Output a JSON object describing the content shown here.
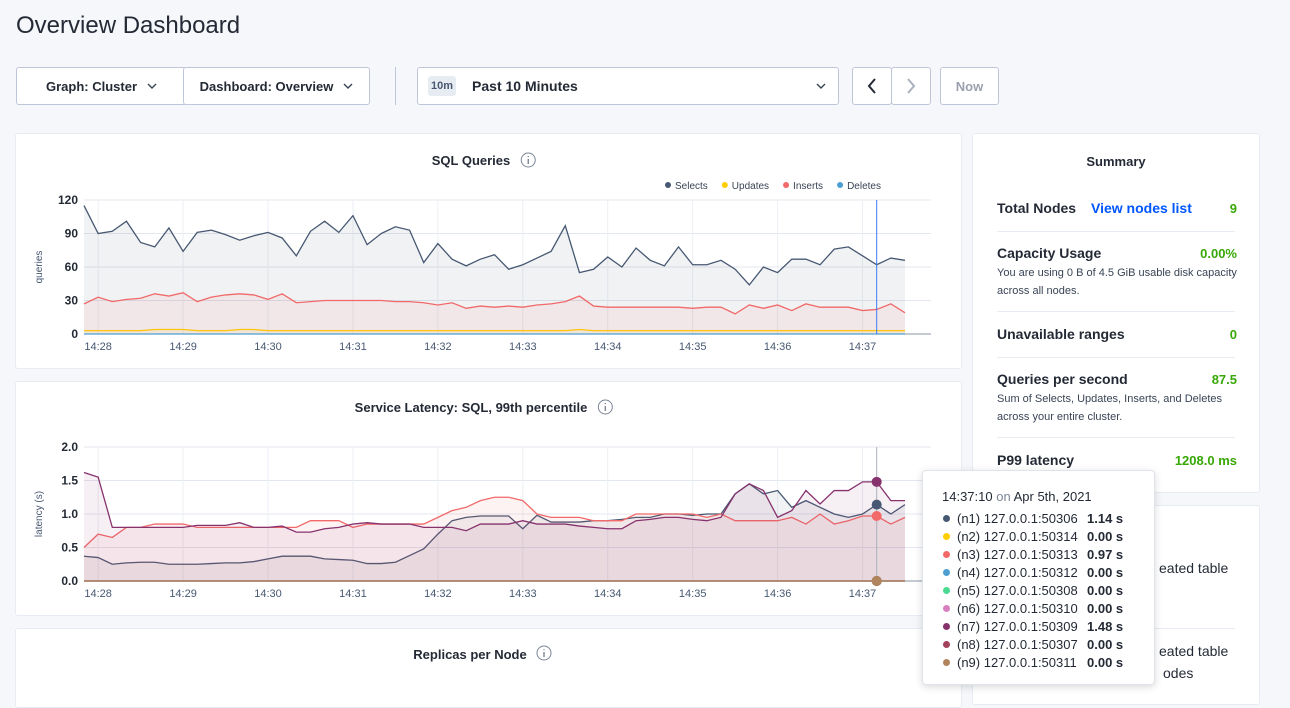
{
  "header": {
    "title": "Overview Dashboard"
  },
  "controls": {
    "graph": "Graph: Cluster",
    "dashboard": "Dashboard: Overview",
    "time_badge": "10m",
    "time_range": "Past 10 Minutes",
    "now": "Now"
  },
  "chart_data": [
    {
      "type": "area",
      "title": "SQL Queries",
      "y_label": "queries",
      "legend": "top-right",
      "grid": true,
      "ylim": [
        0,
        120
      ],
      "yticks": [
        0,
        30,
        60,
        90,
        120
      ],
      "categories": [
        null,
        "14:28",
        null,
        null,
        null,
        null,
        null,
        "14:29",
        null,
        null,
        null,
        null,
        null,
        "14:30",
        null,
        null,
        null,
        null,
        null,
        "14:31",
        null,
        null,
        null,
        null,
        null,
        "14:32",
        null,
        null,
        null,
        null,
        null,
        "14:33",
        null,
        null,
        null,
        null,
        null,
        "14:34",
        null,
        null,
        null,
        null,
        null,
        "14:35",
        null,
        null,
        null,
        null,
        null,
        "14:36",
        null,
        null,
        null,
        null,
        null,
        "14:37",
        null,
        null,
        null
      ],
      "series": [
        {
          "name": "Selects",
          "color": "#475872",
          "values": [
            115,
            90,
            92,
            101,
            82,
            78,
            95,
            74,
            91,
            93,
            89,
            84,
            88,
            91,
            86,
            70,
            92,
            101,
            91,
            106,
            80,
            90,
            96,
            93,
            64,
            81,
            67,
            61,
            67,
            71,
            58,
            62,
            68,
            74,
            97,
            55,
            58,
            69,
            60,
            77,
            66,
            61,
            78,
            62,
            62,
            66,
            58,
            44,
            60,
            55,
            67,
            67,
            62,
            76,
            78,
            70,
            62,
            68,
            66
          ]
        },
        {
          "name": "Updates",
          "color": "#ffcd02",
          "values": [
            3,
            3,
            3,
            3,
            3,
            4,
            4,
            4,
            3,
            3,
            3,
            4,
            4,
            3,
            3,
            3,
            3,
            3,
            3,
            3,
            3,
            3,
            3,
            3,
            3,
            3,
            3,
            3,
            3,
            3,
            3,
            3,
            3,
            3,
            3,
            4,
            3,
            3,
            3,
            3,
            3,
            3,
            3,
            3,
            3,
            3,
            3,
            3,
            3,
            3,
            3,
            3,
            3,
            3,
            3,
            3,
            3,
            3,
            3
          ]
        },
        {
          "name": "Inserts",
          "color": "#f16969",
          "values": [
            27,
            33,
            29,
            31,
            32,
            36,
            34,
            37,
            29,
            33,
            35,
            36,
            35,
            31,
            36,
            28,
            29,
            30,
            30,
            30,
            30,
            30,
            29,
            29,
            28,
            26,
            28,
            23,
            25,
            24,
            25,
            24,
            26,
            27,
            29,
            34,
            25,
            24,
            24,
            24,
            24,
            24,
            24,
            23,
            24,
            24,
            18,
            26,
            23,
            26,
            21,
            27,
            24,
            24,
            24,
            21,
            22,
            27,
            19
          ]
        },
        {
          "name": "Deletes",
          "color": "#4e9fd1",
          "values": [
            0,
            0,
            0,
            0,
            0,
            0,
            0,
            0,
            0,
            0,
            0,
            0,
            0,
            0,
            0,
            0,
            0,
            0,
            0,
            0,
            0,
            0,
            0,
            0,
            0,
            0,
            0,
            0,
            0,
            0,
            0,
            0,
            0,
            0,
            0,
            0,
            0,
            0,
            0,
            0,
            0,
            0,
            0,
            0,
            0,
            0,
            0,
            0,
            0,
            0,
            0,
            0,
            0,
            0,
            0,
            0,
            0,
            0,
            0
          ]
        }
      ]
    },
    {
      "type": "area",
      "title": "Service Latency: SQL, 99th percentile",
      "y_label": "latency (s)",
      "grid": true,
      "ylim": [
        0,
        2
      ],
      "yticks": [
        {
          "value": 0,
          "label": "0.0"
        },
        0.5,
        {
          "value": 1,
          "label": "1.0"
        },
        1.5,
        {
          "value": 2,
          "label": "2.0"
        }
      ],
      "categories": [
        null,
        "14:28",
        null,
        null,
        null,
        null,
        null,
        "14:29",
        null,
        null,
        null,
        null,
        null,
        "14:30",
        null,
        null,
        null,
        null,
        null,
        "14:31",
        null,
        null,
        null,
        null,
        null,
        "14:32",
        null,
        null,
        null,
        null,
        null,
        "14:33",
        null,
        null,
        null,
        null,
        null,
        "14:34",
        null,
        null,
        null,
        null,
        null,
        "14:35",
        null,
        null,
        null,
        null,
        null,
        "14:36",
        null,
        null,
        null,
        null,
        null,
        "14:37",
        null,
        null,
        null
      ],
      "series": [
        {
          "name": "(n1) 127.0.0.1:50306",
          "color": "#475872",
          "values": [
            0.37,
            0.35,
            0.25,
            0.27,
            0.28,
            0.28,
            0.25,
            0.25,
            0.25,
            0.26,
            0.27,
            0.27,
            0.29,
            0.33,
            0.37,
            0.37,
            0.37,
            0.33,
            0.32,
            0.31,
            0.26,
            0.26,
            0.28,
            0.38,
            0.48,
            0.7,
            0.9,
            0.95,
            0.97,
            0.97,
            0.97,
            0.78,
            0.98,
            0.88,
            0.88,
            0.88,
            0.9,
            0.9,
            0.92,
            0.95,
            0.95,
            1.0,
            1.0,
            0.98,
            1.0,
            1.0,
            1.3,
            1.45,
            1.3,
            1.35,
            1.1,
            1.2,
            1.1,
            1.0,
            0.95,
            1.0,
            1.14,
            1.0,
            1.14
          ]
        },
        {
          "name": "(n2) 127.0.0.1:50314",
          "color": "#ffcd02",
          "values": [
            0,
            0,
            0,
            0,
            0,
            0,
            0,
            0,
            0,
            0,
            0,
            0,
            0,
            0,
            0,
            0,
            0,
            0,
            0,
            0,
            0,
            0,
            0,
            0,
            0,
            0,
            0,
            0,
            0,
            0,
            0,
            0,
            0,
            0,
            0,
            0,
            0,
            0,
            0,
            0,
            0,
            0,
            0,
            0,
            0,
            0,
            0,
            0,
            0,
            0,
            0,
            0,
            0,
            0,
            0,
            0,
            0,
            0,
            0
          ]
        },
        {
          "name": "(n3) 127.0.0.1:50313",
          "color": "#f16969",
          "values": [
            0.5,
            0.7,
            0.65,
            0.8,
            0.8,
            0.85,
            0.85,
            0.85,
            0.8,
            0.8,
            0.8,
            0.8,
            0.8,
            0.8,
            0.8,
            0.8,
            0.9,
            0.9,
            0.9,
            0.8,
            0.85,
            0.85,
            0.85,
            0.85,
            0.85,
            0.95,
            1.05,
            1.1,
            1.2,
            1.25,
            1.25,
            1.2,
            1.0,
            0.95,
            0.95,
            0.95,
            0.9,
            0.9,
            0.9,
            1.0,
            1.0,
            1.0,
            1.0,
            1.0,
            0.95,
            1.0,
            0.9,
            0.9,
            0.9,
            0.9,
            0.95,
            0.85,
            1.0,
            0.85,
            0.9,
            0.97,
            0.97,
            0.85,
            0.95
          ]
        },
        {
          "name": "(n4) 127.0.0.1:50312",
          "color": "#4e9fd1",
          "values": [
            0,
            0,
            0,
            0,
            0,
            0,
            0,
            0,
            0,
            0,
            0,
            0,
            0,
            0,
            0,
            0,
            0,
            0,
            0,
            0,
            0,
            0,
            0,
            0,
            0,
            0,
            0,
            0,
            0,
            0,
            0,
            0,
            0,
            0,
            0,
            0,
            0,
            0,
            0,
            0,
            0,
            0,
            0,
            0,
            0,
            0,
            0,
            0,
            0,
            0,
            0,
            0,
            0,
            0,
            0,
            0,
            0,
            0,
            0
          ]
        },
        {
          "name": "(n5) 127.0.0.1:50308",
          "color": "#49d990",
          "values": [
            0,
            0,
            0,
            0,
            0,
            0,
            0,
            0,
            0,
            0,
            0,
            0,
            0,
            0,
            0,
            0,
            0,
            0,
            0,
            0,
            0,
            0,
            0,
            0,
            0,
            0,
            0,
            0,
            0,
            0,
            0,
            0,
            0,
            0,
            0,
            0,
            0,
            0,
            0,
            0,
            0,
            0,
            0,
            0,
            0,
            0,
            0,
            0,
            0,
            0,
            0,
            0,
            0,
            0,
            0,
            0,
            0,
            0,
            0
          ]
        },
        {
          "name": "(n6) 127.0.0.1:50310",
          "color": "#d77fbf",
          "values": [
            0,
            0,
            0,
            0,
            0,
            0,
            0,
            0,
            0,
            0,
            0,
            0,
            0,
            0,
            0,
            0,
            0,
            0,
            0,
            0,
            0,
            0,
            0,
            0,
            0,
            0,
            0,
            0,
            0,
            0,
            0,
            0,
            0,
            0,
            0,
            0,
            0,
            0,
            0,
            0,
            0,
            0,
            0,
            0,
            0,
            0,
            0,
            0,
            0,
            0,
            0,
            0,
            0,
            0,
            0,
            0,
            0,
            0,
            0
          ]
        },
        {
          "name": "(n7) 127.0.0.1:50309",
          "color": "#87326d",
          "values": [
            1.62,
            1.55,
            0.8,
            0.8,
            0.8,
            0.8,
            0.8,
            0.8,
            0.83,
            0.83,
            0.83,
            0.87,
            0.8,
            0.8,
            0.82,
            0.73,
            0.73,
            0.78,
            0.8,
            0.85,
            0.87,
            0.85,
            0.85,
            0.85,
            0.8,
            0.8,
            0.8,
            0.75,
            0.85,
            0.85,
            0.85,
            0.9,
            0.85,
            0.85,
            0.85,
            0.82,
            0.8,
            0.78,
            0.78,
            0.9,
            0.92,
            0.95,
            0.95,
            0.92,
            0.9,
            0.95,
            1.3,
            1.45,
            1.35,
            0.95,
            1.05,
            1.35,
            1.15,
            1.35,
            1.35,
            1.48,
            1.48,
            1.2,
            1.2
          ]
        },
        {
          "name": "(n8) 127.0.0.1:50307",
          "color": "#a3415b",
          "values": [
            0,
            0,
            0,
            0,
            0,
            0,
            0,
            0,
            0,
            0,
            0,
            0,
            0,
            0,
            0,
            0,
            0,
            0,
            0,
            0,
            0,
            0,
            0,
            0,
            0,
            0,
            0,
            0,
            0,
            0,
            0,
            0,
            0,
            0,
            0,
            0,
            0,
            0,
            0,
            0,
            0,
            0,
            0,
            0,
            0,
            0,
            0,
            0,
            0,
            0,
            0,
            0,
            0,
            0,
            0,
            0,
            0,
            0,
            0
          ]
        },
        {
          "name": "(n9) 127.0.0.1:50311",
          "color": "#b0855e",
          "values": [
            0,
            0,
            0,
            0,
            0,
            0,
            0,
            0,
            0,
            0,
            0,
            0,
            0,
            0,
            0,
            0,
            0,
            0,
            0,
            0,
            0,
            0,
            0,
            0,
            0,
            0,
            0,
            0,
            0,
            0,
            0,
            0,
            0,
            0,
            0,
            0,
            0,
            0,
            0,
            0,
            0,
            0,
            0,
            0,
            0,
            0,
            0,
            0,
            0,
            0,
            0,
            0,
            0,
            0,
            0,
            0,
            0,
            0,
            0
          ]
        }
      ]
    }
  ],
  "replicas_panel": {
    "title": "Replicas per Node"
  },
  "summary": {
    "title": "Summary",
    "total_nodes": "Total Nodes",
    "nodes_link": "View nodes list",
    "total_nodes_value": "9",
    "capacity": "Capacity Usage",
    "capacity_value": "0.00%",
    "capacity_note": "You are using 0 B of 4.5 GiB usable disk capacity across all nodes.",
    "unavailable": "Unavailable ranges",
    "unavailable_value": "0",
    "qps": "Queries per second",
    "qps_value": "87.5",
    "qps_note": "Sum of Selects, Updates, Inserts, and Deletes across your entire cluster.",
    "p99": "P99 latency",
    "p99_value": "1208.0 ms"
  },
  "events": {
    "items": [
      "eated table",
      "eated table",
      "odes"
    ]
  },
  "tooltip": {
    "time": "14:37:10",
    "on": "on",
    "date": "Apr 5th, 2021",
    "rows": [
      {
        "label": "(n1) 127.0.0.1:50306",
        "value": "1.14 s"
      },
      {
        "label": "(n2) 127.0.0.1:50314",
        "value": "0.00 s"
      },
      {
        "label": "(n3) 127.0.0.1:50313",
        "value": "0.97 s"
      },
      {
        "label": "(n4) 127.0.0.1:50312",
        "value": "0.00 s"
      },
      {
        "label": "(n5) 127.0.0.1:50308",
        "value": "0.00 s"
      },
      {
        "label": "(n6) 127.0.0.1:50310",
        "value": "0.00 s"
      },
      {
        "label": "(n7) 127.0.0.1:50309",
        "value": "1.48 s"
      },
      {
        "label": "(n8) 127.0.0.1:50307",
        "value": "0.00 s"
      },
      {
        "label": "(n9) 127.0.0.1:50311",
        "value": "0.00 s"
      }
    ]
  }
}
